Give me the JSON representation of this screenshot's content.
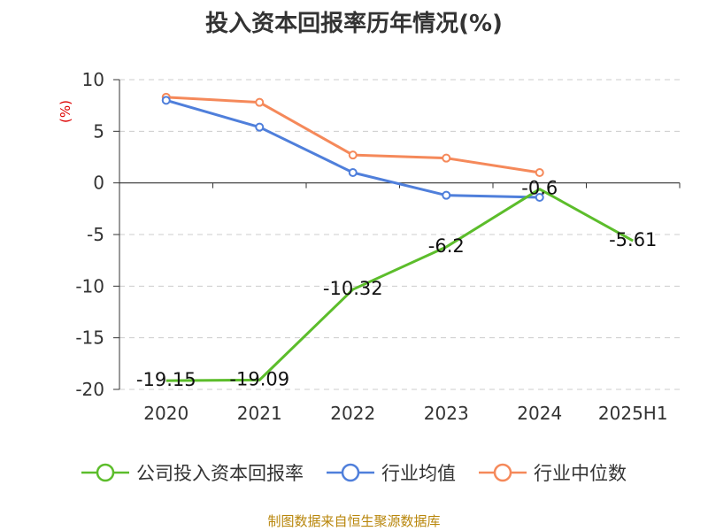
{
  "chart_data": {
    "type": "line",
    "title": "投入资本回报率历年情况(%)",
    "ylabel": "(%)",
    "categories": [
      "2020",
      "2021",
      "2022",
      "2023",
      "2024",
      "2025H1"
    ],
    "yticks": [
      "10",
      "5",
      "0",
      "-5",
      "-10",
      "-15",
      "-20"
    ],
    "ylim": [
      -20,
      10
    ],
    "grid": true,
    "legend_position": "bottom",
    "series": [
      {
        "name": "公司投入资本回报率",
        "color": "#5cbd2b",
        "values": [
          -19.15,
          -19.09,
          -10.32,
          -6.2,
          -0.6,
          -5.61
        ],
        "labels": [
          "-19.15",
          "-19.09",
          "-10.32",
          "-6.2",
          "-0.6",
          "-5.61"
        ]
      },
      {
        "name": "行业均值",
        "color": "#4f7fdb",
        "values": [
          8.0,
          5.4,
          1.0,
          -1.2,
          -1.4,
          null
        ]
      },
      {
        "name": "行业中位数",
        "color": "#f5895a",
        "values": [
          8.3,
          7.8,
          2.7,
          2.4,
          1.0,
          null
        ]
      }
    ]
  },
  "source_text": "制图数据来自恒生聚源数据库"
}
